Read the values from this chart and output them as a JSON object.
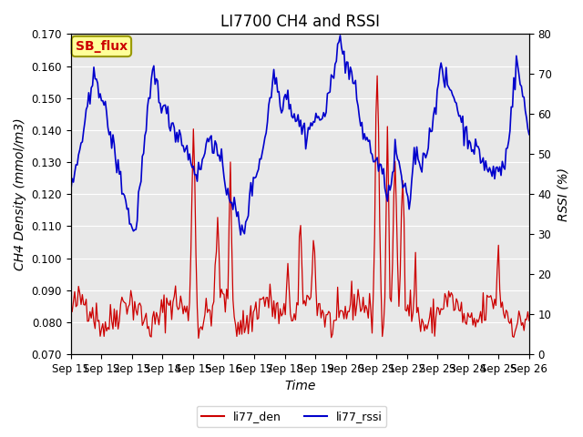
{
  "title": "LI7700 CH4 and RSSI",
  "xlabel": "Time",
  "ylabel_left": "CH4 Density (mmol/m3)",
  "ylabel_right": "RSSI (%)",
  "ylim_left": [
    0.07,
    0.17
  ],
  "ylim_right": [
    0,
    80
  ],
  "yticks_left": [
    0.07,
    0.08,
    0.09,
    0.1,
    0.11,
    0.12,
    0.13,
    0.14,
    0.15,
    0.16,
    0.17
  ],
  "yticks_right": [
    0,
    10,
    20,
    30,
    40,
    50,
    60,
    70,
    80
  ],
  "bg_color": "#e8e8e8",
  "line_color_den": "#cc0000",
  "line_color_rssi": "#0000cc",
  "legend_labels": [
    "li77_den",
    "li77_rssi"
  ],
  "annotation_text": "SB_flux",
  "annotation_color": "#cc0000",
  "annotation_bg": "#ffff99",
  "annotation_border": "#999900",
  "title_fontsize": 12,
  "label_fontsize": 10,
  "tick_fontsize": 8.5,
  "n_points": 360
}
